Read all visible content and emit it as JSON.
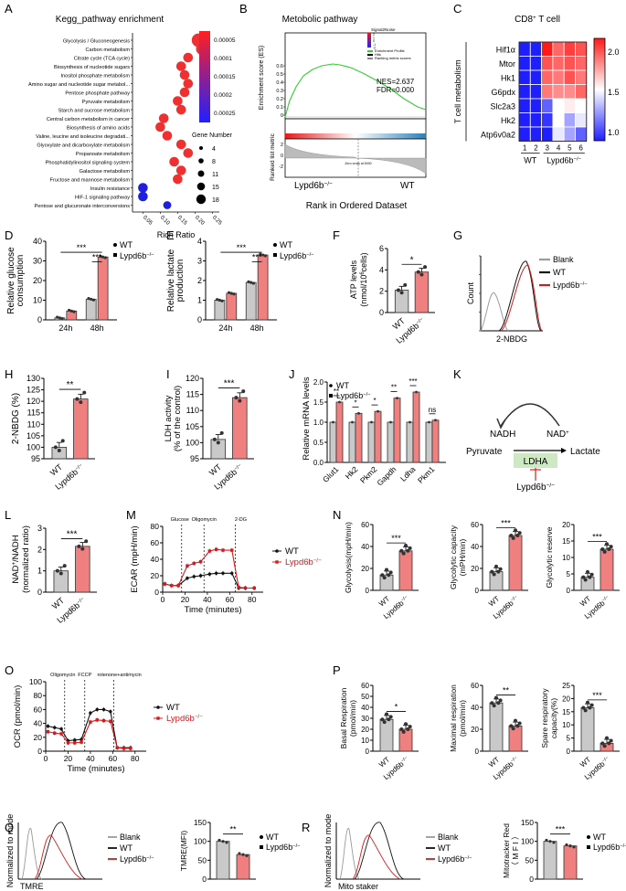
{
  "colors": {
    "wt": "#c9c9c9",
    "ko": "#f08080",
    "red": "#e41a1c",
    "wtline": "#111111",
    "koline": "#d7191c",
    "blank": "#9a9a9a",
    "blue": "#1f1fe0",
    "green": "#33cc33"
  },
  "panels": [
    "A",
    "B",
    "C",
    "D",
    "E",
    "F",
    "G",
    "H",
    "I",
    "J",
    "K",
    "L",
    "M",
    "N",
    "O",
    "P",
    "Q",
    "R"
  ],
  "panelA": {
    "title": "Kegg_pathway enrichment",
    "pathways": [
      "Glycolysis / Gluconeogenesis",
      "Carbon metabolism",
      "Citrate cycle (TCA cycle)",
      "Biosynthesis of nucleotide sugars",
      "Inositol phosphate metabolism",
      "Amino sugar and nucleotide sugar metabol...",
      "Pentose phosphate pathway",
      "Pyruvate metabolism",
      "Starch and sucrose metabolism",
      "Central carbon metabolism in cancer",
      "Biosynthesis of amino acids",
      "Valine, leucine and isoleucine degradati...",
      "Glyoxylate and dicarboxylate metabolism",
      "Propanoate metabolism",
      "Phosphatidylinositol signaling system",
      "Galactose metabolism",
      "Fructose and mannose metabolism",
      "Insulin resistance",
      "HIF-1 signaling pathway",
      "Pentose and glucuronate interconversions"
    ],
    "rich_ratio": [
      0.21,
      0.22,
      0.18,
      0.16,
      0.17,
      0.18,
      0.17,
      0.15,
      0.16,
      0.11,
      0.1,
      0.12,
      0.16,
      0.18,
      0.14,
      0.16,
      0.15,
      0.05,
      0.05,
      0.12
    ],
    "gene_number": [
      18,
      15,
      11,
      11,
      11,
      11,
      11,
      11,
      11,
      11,
      11,
      11,
      11,
      11,
      11,
      11,
      11,
      11,
      11,
      8
    ],
    "qvalue": [
      0,
      0,
      0,
      0,
      0,
      0,
      0,
      0,
      0,
      0,
      0,
      0,
      0,
      0,
      0,
      0,
      0,
      0.00025,
      0.00025,
      0.00025
    ],
    "xlabel": "Rich Ratio",
    "xticks": [
      "0.05",
      "0.10",
      "0.15",
      "0.20",
      "0.25"
    ],
    "colorbar_ticks": [
      "0.00005",
      "0.0001",
      "0.00015",
      "0.0002",
      "0.00025"
    ],
    "size_legend_title": "Gene Number",
    "size_legend": [
      "4",
      "8",
      "11",
      "15",
      "18"
    ]
  },
  "panelB": {
    "title": "Metobolic pathway",
    "ylabel_top": "Enrichment score (ES)",
    "ylabel_bottom": "Ranked list metric",
    "yticks_top": [
      "0.6",
      "0.5",
      "0.4",
      "0.3",
      "0.2",
      "0.1",
      "0"
    ],
    "yticks_bottom": [
      "2",
      "0",
      "-2"
    ],
    "nes": "NES=2.637",
    "fdr": "FDR=0.000",
    "legend": [
      "Signal2Noise",
      "Enrichment Profile",
      "Hits",
      "Ranking metric scores"
    ],
    "colorbar_ticks": [
      "2",
      "1",
      "0",
      "-1",
      "-2"
    ],
    "zero_label": "Zero cross at 5000",
    "left_label": "Lypd6b",
    "right_label": "WT",
    "xlabel": "Rank in Ordered Dataset"
  },
  "panelC": {
    "title": "CD8",
    "title_sup": "+",
    "title_rest": " T cell",
    "genes": [
      "Hif1α",
      "Mtor",
      "Hk1",
      "G6pdx",
      "Slc2a3",
      "Hk2",
      "Atp6v0a2"
    ],
    "side_label": "T cell metabolism",
    "samples": [
      "1",
      "2",
      "3",
      "4",
      "5",
      "6"
    ],
    "groups": [
      "WT",
      "Lypd6b"
    ],
    "matrix": [
      [
        1.0,
        1.0,
        2.15,
        1.9,
        2.0,
        1.95
      ],
      [
        1.0,
        1.0,
        1.95,
        1.9,
        1.95,
        1.9
      ],
      [
        1.0,
        1.0,
        1.9,
        1.85,
        1.95,
        1.85
      ],
      [
        1.0,
        1.0,
        1.85,
        1.8,
        1.8,
        1.9
      ],
      [
        1.0,
        1.0,
        1.15,
        1.5,
        1.55,
        1.5
      ],
      [
        1.0,
        1.0,
        1.05,
        1.5,
        1.3,
        1.45
      ],
      [
        1.0,
        1.0,
        1.0,
        1.45,
        1.3,
        1.15
      ]
    ],
    "colorbar_ticks": [
      "2.0",
      "1.5",
      "1.0"
    ]
  },
  "panelD": {
    "ylabel": [
      "Relative glucose",
      "consumption"
    ],
    "yticks": [
      "0",
      "10",
      "20",
      "30",
      "40"
    ],
    "ylim": [
      0,
      40
    ],
    "categories": [
      "24h",
      "48h"
    ],
    "series": [
      {
        "name": "WT",
        "values": [
          1,
          10.5
        ]
      },
      {
        "name": "Lypd6b",
        "values": [
          4.5,
          32
        ]
      }
    ],
    "legend": [
      "WT",
      "Lypd6b"
    ],
    "stars": [
      "***",
      "***"
    ]
  },
  "panelE": {
    "ylabel": [
      "Relative  lactate",
      "production"
    ],
    "yticks": [
      "0",
      "1",
      "2",
      "3",
      "4"
    ],
    "ylim": [
      0,
      4
    ],
    "categories": [
      "24h",
      "48h"
    ],
    "series": [
      {
        "name": "WT",
        "values": [
          1,
          1.9
        ]
      },
      {
        "name": "Lypd6b",
        "values": [
          1.35,
          3.3
        ]
      }
    ],
    "legend": [
      "WT",
      "Lypd6b"
    ],
    "stars": [
      "***",
      "***"
    ]
  },
  "panelF": {
    "ylabel": [
      "ATP levels",
      "(nmol/10",
      "cells)"
    ],
    "ylabel_sup": "6",
    "yticks": [
      "0",
      "2",
      "4",
      "6"
    ],
    "ylim": [
      0,
      6
    ],
    "categories": [
      "WT",
      "Lypd6b"
    ],
    "values": [
      2.1,
      3.8
    ],
    "star": "*"
  },
  "panelG": {
    "xlabel": "2-NBDG",
    "ylabel": "Count",
    "legend": [
      "Blank",
      "WT",
      "Lypd6b"
    ]
  },
  "panelH": {
    "ylabel": "2-NBDG (%)",
    "yticks": [
      "95",
      "100",
      "105",
      "110",
      "115",
      "120",
      "125",
      "130"
    ],
    "ylim": [
      95,
      130
    ],
    "categories": [
      "WT",
      "Lypd6b"
    ],
    "values": [
      100,
      121
    ],
    "star": "**"
  },
  "panelI": {
    "ylabel": [
      "LDH activity",
      "(% of the control)"
    ],
    "yticks": [
      "95",
      "100",
      "105",
      "110",
      "115",
      "120"
    ],
    "ylim": [
      95,
      120
    ],
    "categories": [
      "WT",
      "Lypd6b"
    ],
    "values": [
      101,
      114
    ],
    "star": "***"
  },
  "panelJ": {
    "ylabel": "Relative mRNA levels",
    "yticks": [
      "0.0",
      "0.5",
      "1.0",
      "1.5",
      "2.0"
    ],
    "ylim": [
      0,
      2
    ],
    "categories": [
      "Glut1",
      "Hk2",
      "Pkm2",
      "Gapdh",
      "Ldha",
      "Pkm1"
    ],
    "series": [
      {
        "name": "WT",
        "values": [
          1,
          1,
          1,
          1,
          1,
          1
        ]
      },
      {
        "name": "Lypd6b",
        "values": [
          1.5,
          1.22,
          1.27,
          1.6,
          1.75,
          1.05
        ]
      }
    ],
    "legend": [
      "WT",
      "Lypd6b"
    ],
    "stars": [
      "**",
      "*",
      "*",
      "**",
      "***",
      "ns"
    ]
  },
  "panelK": {
    "nadh": "NADH",
    "nad": "NAD",
    "nad_sup": "+",
    "pyruvate": "Pyruvate",
    "lactate": "Lactate",
    "ldha": "LDHA",
    "lypd6b": "Lypd6b"
  },
  "panelL": {
    "ylabel": [
      "NAD",
      "/NADH",
      "(normalized ratio)"
    ],
    "ylabel_sup": "+",
    "yticks": [
      "0",
      "1",
      "2",
      "3"
    ],
    "ylim": [
      0,
      3
    ],
    "categories": [
      "WT",
      "Lypd6b"
    ],
    "values": [
      1.0,
      2.15
    ],
    "star": "***"
  },
  "panelM": {
    "ylabel": "ECAR (mpH/min)",
    "xlabel": "Time (minutes)",
    "yticks": [
      "0",
      "20",
      "40",
      "60",
      "80"
    ],
    "ylim": [
      0,
      80
    ],
    "xticks": [
      "0",
      "20",
      "40",
      "60",
      "80"
    ],
    "xlim": [
      0,
      90
    ],
    "annotations": [
      "Glucose",
      "Oligomycin",
      "2-DG"
    ],
    "x": [
      2,
      8,
      14,
      22,
      28,
      34,
      42,
      48,
      54,
      62,
      68,
      74,
      82
    ],
    "series": [
      {
        "name": "WT",
        "values": [
          10,
          8,
          8,
          17,
          19,
          20,
          22,
          23,
          23,
          23,
          5,
          5,
          5
        ]
      },
      {
        "name": "Lypd6b",
        "values": [
          10,
          8,
          8,
          32,
          35,
          37,
          50,
          52,
          51,
          51,
          6,
          5,
          5
        ]
      }
    ],
    "legend": [
      "WT",
      "Lypd6b"
    ]
  },
  "panelN": [
    {
      "ylabel": "Glycolysis(mpH/min)",
      "yticks": [
        "0",
        "20",
        "40",
        "60"
      ],
      "ylim": [
        0,
        60
      ],
      "categories": [
        "WT",
        "Lypd6b"
      ],
      "values": [
        14,
        36
      ],
      "star": "***"
    },
    {
      "ylabel": [
        "Glycolytic capacity",
        "(mPH/min)"
      ],
      "yticks": [
        "0",
        "20",
        "40",
        "60"
      ],
      "ylim": [
        0,
        60
      ],
      "categories": [
        "WT",
        "Lypd6b"
      ],
      "values": [
        17,
        50
      ],
      "star": "***"
    },
    {
      "ylabel": "Glycolytic reserve",
      "yticks": [
        "0",
        "5",
        "10",
        "15",
        "20"
      ],
      "ylim": [
        0,
        20
      ],
      "categories": [
        "WT",
        "Lypd6b"
      ],
      "values": [
        4,
        12.5
      ],
      "star": "***"
    }
  ],
  "panelO": {
    "ylabel": "OCR (pmol/min)",
    "xlabel": "Time (minutes)",
    "yticks": [
      "0",
      "20",
      "40",
      "60",
      "80",
      "100"
    ],
    "ylim": [
      0,
      100
    ],
    "xticks": [
      "0",
      "20",
      "40",
      "60",
      "80"
    ],
    "xlim": [
      0,
      90
    ],
    "annotations": [
      "Oligomycin",
      "FCCP",
      "rotenone+antimycin"
    ],
    "x": [
      2,
      8,
      14,
      20,
      26,
      32,
      40,
      46,
      52,
      58,
      64,
      70,
      76
    ],
    "series": [
      {
        "name": "WT",
        "values": [
          36,
          34,
          32,
          15,
          16,
          17,
          55,
          60,
          60,
          57,
          5,
          5,
          5
        ]
      },
      {
        "name": "Lypd6b",
        "values": [
          28,
          26,
          25,
          12,
          12,
          13,
          42,
          45,
          44,
          43,
          5,
          4,
          4
        ]
      }
    ],
    "legend": [
      "WT",
      "Lypd6b"
    ]
  },
  "panelP": [
    {
      "ylabel": [
        "Basal Respiration",
        "(pmol/min)"
      ],
      "yticks": [
        "0",
        "10",
        "20",
        "30",
        "40",
        "50",
        "60"
      ],
      "ylim": [
        0,
        60
      ],
      "categories": [
        "WT",
        "Lypd6b"
      ],
      "values": [
        29,
        20
      ],
      "star": "*"
    },
    {
      "ylabel": [
        "Maximal respiration",
        "(pmol/min)"
      ],
      "yticks": [
        "0",
        "20",
        "40",
        "60"
      ],
      "ylim": [
        0,
        60
      ],
      "categories": [
        "WT",
        "Lypd6b"
      ],
      "values": [
        44,
        23
      ],
      "star": "**"
    },
    {
      "ylabel": [
        "Spare respiratory",
        "capacity(%)"
      ],
      "yticks": [
        "0",
        "5",
        "10",
        "15",
        "20",
        "25"
      ],
      "ylim": [
        0,
        25
      ],
      "categories": [
        "WT",
        "Lypd6b"
      ],
      "values": [
        16.5,
        3
      ],
      "star": "***"
    }
  ],
  "panelQ": {
    "hist_ylabel": "Normalized to mode",
    "hist_xlabel": "TMRE",
    "hist_legend": [
      "Blank",
      "WT",
      "Lypd6b"
    ],
    "bar_ylabel": "TMRE(MFI)",
    "yticks": [
      "0",
      "50",
      "100",
      "150"
    ],
    "ylim": [
      0,
      150
    ],
    "categories": [
      "WT",
      "Lypd6b"
    ],
    "values": [
      100,
      65
    ],
    "legend": [
      "WT",
      "Lypd6b"
    ],
    "star": "**"
  },
  "panelR": {
    "hist_ylabel": "Normalized to mode",
    "hist_xlabel": "Mito staker",
    "hist_legend": [
      "Blank",
      "WT",
      "Lypd6b"
    ],
    "bar_ylabel": [
      "Mitotracker Red",
      "（ M F I ）"
    ],
    "yticks": [
      "0",
      "50",
      "100",
      "150"
    ],
    "ylim": [
      0,
      150
    ],
    "categories": [
      "WT",
      "Lypd6b"
    ],
    "values": [
      100,
      88
    ],
    "legend": [
      "WT",
      "Lypd6b"
    ],
    "star": "***"
  },
  "ko_sup": "−/−"
}
